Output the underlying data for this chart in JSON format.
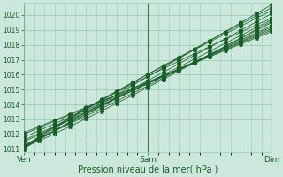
{
  "title": "",
  "xlabel": "Pression niveau de la mer( hPa )",
  "xlim": [
    0,
    48
  ],
  "ylim": [
    1010.8,
    1020.8
  ],
  "yticks": [
    1011,
    1012,
    1013,
    1014,
    1015,
    1016,
    1017,
    1018,
    1019,
    1020
  ],
  "xtick_positions": [
    0,
    24,
    48
  ],
  "xtick_labels": [
    "Ven",
    "Sam",
    "Dim"
  ],
  "bg_color": "#cce8dc",
  "grid_color": "#99ccb8",
  "line_color": "#1a5c2a",
  "marker_size": 3
}
